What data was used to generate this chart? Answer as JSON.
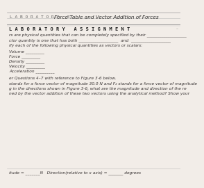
{
  "bg_color": "#f2ede8",
  "text_color": "#3a3535",
  "header_label": "L A B O R A T O R Y   3",
  "header_title": "Force Table and Vector Addition of Forces",
  "lab_assignment": "L A B O R A T O R Y   A S S I G N M E N T",
  "line1": "rs are physical quantities that can be completely specified by their ___________________",
  "line2": "ctor quantity is one that has both ___________________  and  ___________________",
  "line3": "ify each of the following physical quantities as vectors or scalars:",
  "items": [
    "Volume _________",
    "Force _________",
    "Density _________",
    "Velocity _________",
    "Acceleration _________"
  ],
  "para_intro": "er Questions 4–7 with reference to Figure 3-6 below.",
  "para_body1": "stands for a force vector of magnitude 30.0 N and F₂ stands for a force vector of magnitude",
  "para_body2": "g in the directions shown in Figure 3-6, what are the magnitude and direction of the re",
  "para_body3": "ned by the vector addition of these two vectors using the analytical method? Show your",
  "footer": "itude = _______N   Direction(relative to x axis) = _______ degrees",
  "dash_marker": "–"
}
